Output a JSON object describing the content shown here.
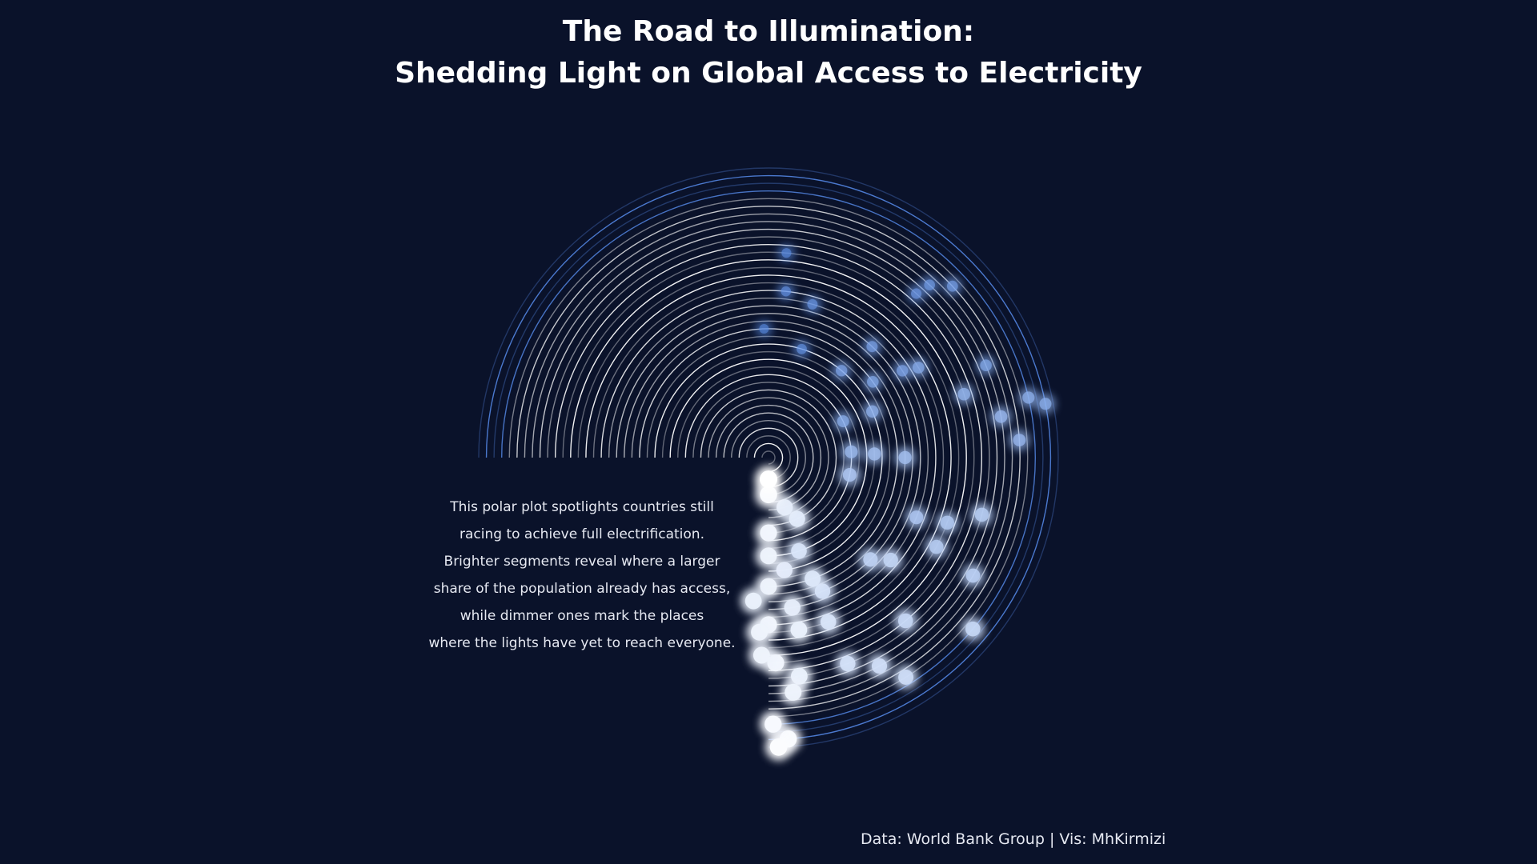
{
  "title": {
    "line1": "The Road to Illumination:",
    "line2": "Shedding Light on Global Access to Electricity"
  },
  "description": [
    "This polar plot spotlights countries still",
    "racing to achieve full electrification.",
    "Brighter segments reveal where a larger",
    "share of the population already has access,",
    "while dimmer ones mark the places",
    "where the lights have yet to reach everyone."
  ],
  "caption": "Data: World Bank Group | Vis: MhKirmizi",
  "colors": {
    "background": "#0a122a",
    "ring": "#ffffff",
    "ring_outer": "#4f7fd8",
    "dim": "#5b8ee6",
    "bright": "#ffffff"
  },
  "chart_data": {
    "type": "scatter",
    "projection": "polar",
    "angle_range_deg": [
      0,
      270
    ],
    "rings": 38,
    "points": [
      {
        "ring": 26,
        "angle": 85,
        "access": 22
      },
      {
        "ring": 21,
        "angle": 84,
        "access": 25
      },
      {
        "ring": 16,
        "angle": 92,
        "access": 18
      },
      {
        "ring": 20,
        "angle": 74,
        "access": 28
      },
      {
        "ring": 14,
        "angle": 73,
        "access": 26
      },
      {
        "ring": 30,
        "angle": 47,
        "access": 32
      },
      {
        "ring": 32,
        "angle": 43,
        "access": 34
      },
      {
        "ring": 28,
        "angle": 48,
        "access": 30
      },
      {
        "ring": 19,
        "angle": 47,
        "access": 36
      },
      {
        "ring": 14,
        "angle": 50,
        "access": 38
      },
      {
        "ring": 16,
        "angle": 36,
        "access": 40
      },
      {
        "ring": 20,
        "angle": 33,
        "access": 38
      },
      {
        "ring": 22,
        "angle": 31,
        "access": 42
      },
      {
        "ring": 30,
        "angle": 23,
        "access": 40
      },
      {
        "ring": 34,
        "angle": 13,
        "access": 45
      },
      {
        "ring": 36,
        "angle": 11,
        "access": 44
      },
      {
        "ring": 14,
        "angle": 24,
        "access": 46
      },
      {
        "ring": 10,
        "angle": 26,
        "access": 44
      },
      {
        "ring": 26,
        "angle": 18,
        "access": 48
      },
      {
        "ring": 30,
        "angle": 10,
        "access": 50
      },
      {
        "ring": 32,
        "angle": 4,
        "access": 50
      },
      {
        "ring": 10,
        "angle": 4,
        "access": 52
      },
      {
        "ring": 13,
        "angle": 2,
        "access": 55
      },
      {
        "ring": 17,
        "angle": 0,
        "access": 55
      },
      {
        "ring": 10,
        "angle": -12,
        "access": 60
      },
      {
        "ring": 24,
        "angle": -20,
        "access": 62
      },
      {
        "ring": 20,
        "angle": -22,
        "access": 60
      },
      {
        "ring": 28,
        "angle": -15,
        "access": 64
      },
      {
        "ring": 30,
        "angle": -30,
        "access": 66
      },
      {
        "ring": 24,
        "angle": -28,
        "access": 64
      },
      {
        "ring": 18,
        "angle": -45,
        "access": 68
      },
      {
        "ring": 20,
        "angle": -40,
        "access": 70
      },
      {
        "ring": 27,
        "angle": -50,
        "access": 72
      },
      {
        "ring": 34,
        "angle": -40,
        "access": 72
      },
      {
        "ring": 33,
        "angle": -58,
        "access": 75
      },
      {
        "ring": 30,
        "angle": -62,
        "access": 76
      },
      {
        "ring": 28,
        "angle": -69,
        "access": 78
      },
      {
        "ring": 22,
        "angle": -70,
        "access": 80
      },
      {
        "ring": 18,
        "angle": -68,
        "access": 78
      },
      {
        "ring": 16,
        "angle": -70,
        "access": 82
      },
      {
        "ring": 12,
        "angle": -72,
        "access": 80
      },
      {
        "ring": 8,
        "angle": -65,
        "access": 84
      },
      {
        "ring": 6,
        "angle": -72,
        "access": 86
      },
      {
        "ring": 14,
        "angle": -82,
        "access": 85
      },
      {
        "ring": 19,
        "angle": -81,
        "access": 86
      },
      {
        "ring": 22,
        "angle": -80,
        "access": 88
      },
      {
        "ring": 28,
        "angle": -82,
        "access": 88
      },
      {
        "ring": 30,
        "angle": -84,
        "access": 90
      },
      {
        "ring": 36,
        "angle": -86,
        "access": 95
      },
      {
        "ring": 37,
        "angle": -88,
        "access": 96
      },
      {
        "ring": 34,
        "angle": -89,
        "access": 94
      },
      {
        "ring": 26,
        "angle": -88,
        "access": 92
      },
      {
        "ring": 21,
        "angle": -90,
        "access": 92
      },
      {
        "ring": 16,
        "angle": -90,
        "access": 90
      },
      {
        "ring": 12,
        "angle": -90,
        "access": 90
      },
      {
        "ring": 9,
        "angle": -90,
        "access": 92
      },
      {
        "ring": 4,
        "angle": -90,
        "access": 95
      },
      {
        "ring": 2,
        "angle": -90,
        "access": 98
      },
      {
        "ring": 18,
        "angle": -96,
        "access": 88
      },
      {
        "ring": 22,
        "angle": -93,
        "access": 90
      },
      {
        "ring": 25,
        "angle": -92,
        "access": 90
      }
    ]
  }
}
